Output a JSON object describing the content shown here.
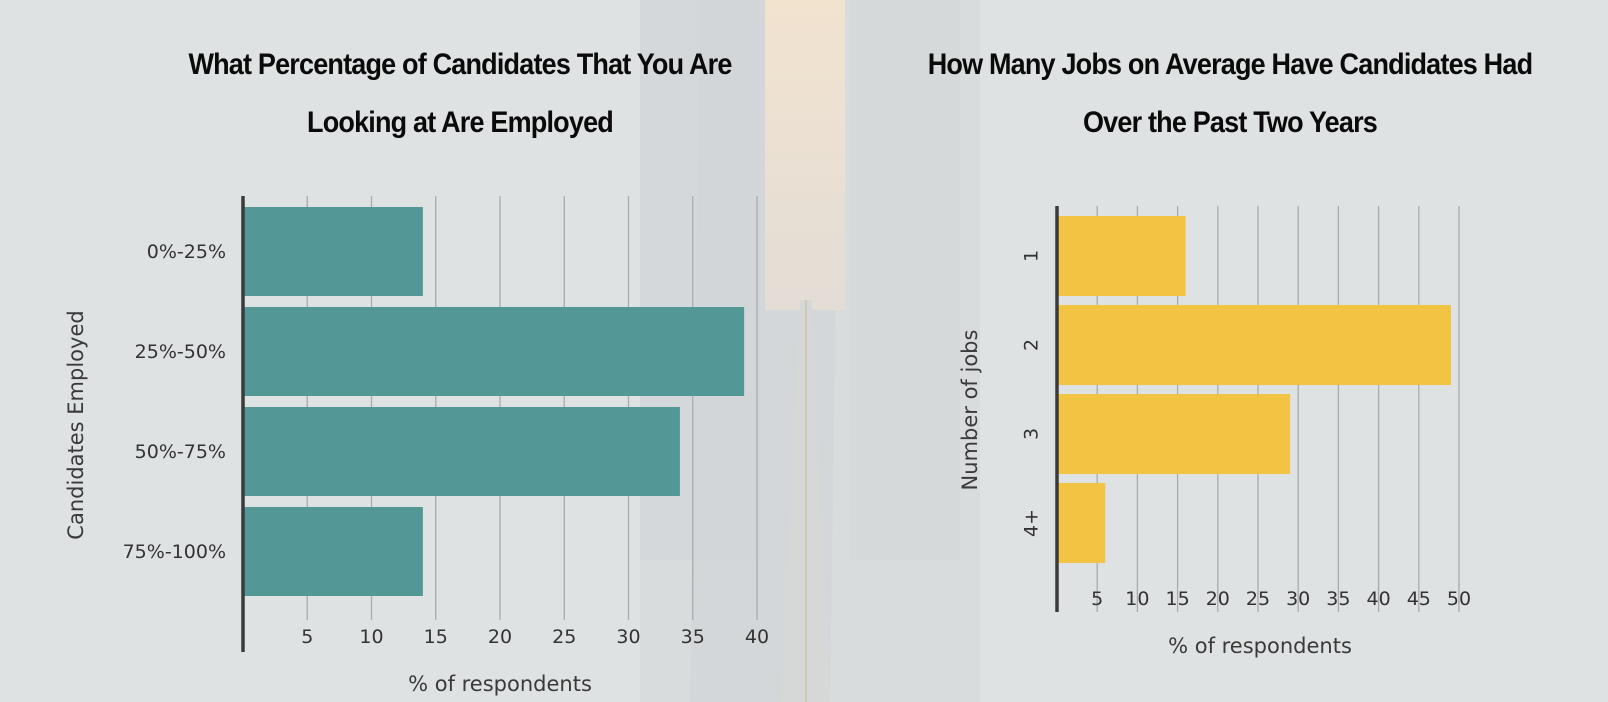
{
  "colors": {
    "left_bars": "#539896",
    "right_bars": "#f3c443",
    "axis": "#3a3a3a",
    "grid": "#a9abab"
  },
  "chart_data": [
    {
      "type": "bar",
      "orientation": "horizontal",
      "title_lines": [
        "What Percentage of Candidates That You Are",
        "Looking at Are Employed"
      ],
      "categories": [
        "0%-25%",
        "25%-50%",
        "50%-75%",
        "75%-100%"
      ],
      "values": [
        14,
        39,
        34,
        14
      ],
      "xlabel": "% of respondents",
      "ylabel": "Candidates Employed",
      "xlim": [
        0,
        40
      ],
      "xticks": [
        5,
        10,
        15,
        20,
        25,
        30,
        35,
        40
      ]
    },
    {
      "type": "bar",
      "orientation": "horizontal",
      "title_lines": [
        "How Many Jobs on Average Have Candidates Had",
        "Over the Past Two Years"
      ],
      "categories": [
        "1",
        "2",
        "3",
        "4+"
      ],
      "values": [
        16,
        49,
        29,
        6
      ],
      "xlabel": "% of respondents",
      "ylabel": "Number of jobs",
      "xlim": [
        0,
        50
      ],
      "xticks": [
        5,
        10,
        15,
        20,
        25,
        30,
        35,
        40,
        45,
        50
      ]
    }
  ]
}
